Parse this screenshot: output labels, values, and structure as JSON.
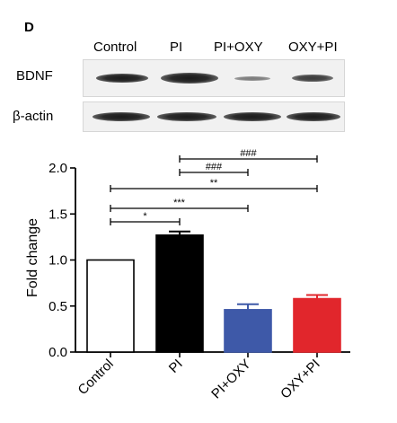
{
  "panel_letter": "D",
  "lanes": [
    "Control",
    "PI",
    "PI+OXY",
    "OXY+PI"
  ],
  "blot_rows": [
    "BDNF",
    "β-actin"
  ],
  "chart_data": {
    "type": "bar",
    "categories": [
      "Control",
      "PI",
      "PI+OXY",
      "OXY+PI"
    ],
    "values": [
      1.0,
      1.27,
      0.46,
      0.58
    ],
    "errors": [
      0.0,
      0.04,
      0.06,
      0.04
    ],
    "colors": [
      "#ffffff",
      "#000000",
      "#3e59a8",
      "#e1262c"
    ],
    "ylabel": "Fold change",
    "xlabel": "",
    "ylim": [
      0,
      2.0
    ],
    "yticks": [
      "0.0",
      "0.5",
      "1.0",
      "1.5",
      "2.0"
    ],
    "significance": [
      {
        "from": "PI",
        "to": "OXY+PI",
        "label": "###"
      },
      {
        "from": "PI",
        "to": "PI+OXY",
        "label": "###"
      },
      {
        "from": "Control",
        "to": "OXY+PI",
        "label": "**"
      },
      {
        "from": "Control",
        "to": "PI+OXY",
        "label": "***"
      },
      {
        "from": "Control",
        "to": "PI",
        "label": "*"
      }
    ]
  }
}
